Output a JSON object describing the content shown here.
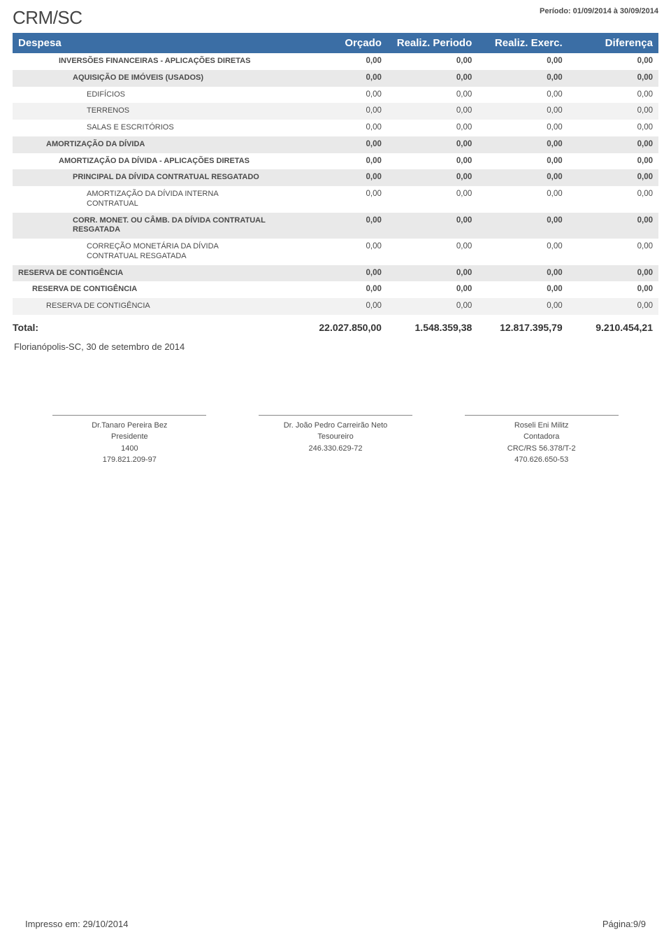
{
  "header": {
    "org": "CRM/SC",
    "period_label": "Período: 01/09/2014 à 30/09/2014"
  },
  "table": {
    "columns": [
      "Despesa",
      "Orçado",
      "Realiz. Periodo",
      "Realiz. Exerc.",
      "Diferença"
    ],
    "rows": [
      {
        "label": "INVERSÕES FINANCEIRAS - APLICAÇÕES DIRETAS",
        "vals": [
          "0,00",
          "0,00",
          "0,00",
          "0,00"
        ],
        "indent": 3,
        "bold": true,
        "shade": 0
      },
      {
        "label": "AQUISIÇÃO DE IMÓVEIS (USADOS)",
        "vals": [
          "0,00",
          "0,00",
          "0,00",
          "0,00"
        ],
        "indent": 4,
        "bold": true,
        "shade": 2
      },
      {
        "label": "EDIFÍCIOS",
        "vals": [
          "0,00",
          "0,00",
          "0,00",
          "0,00"
        ],
        "indent": 5,
        "bold": false,
        "shade": 0
      },
      {
        "label": "TERRENOS",
        "vals": [
          "0,00",
          "0,00",
          "0,00",
          "0,00"
        ],
        "indent": 5,
        "bold": false,
        "shade": 1
      },
      {
        "label": "SALAS E ESCRITÓRIOS",
        "vals": [
          "0,00",
          "0,00",
          "0,00",
          "0,00"
        ],
        "indent": 5,
        "bold": false,
        "shade": 0
      },
      {
        "label": "AMORTIZAÇÃO DA DÍVIDA",
        "vals": [
          "0,00",
          "0,00",
          "0,00",
          "0,00"
        ],
        "indent": 2,
        "bold": true,
        "shade": 2
      },
      {
        "label": "AMORTIZAÇÃO DA DÍVIDA - APLICAÇÕES DIRETAS",
        "vals": [
          "0,00",
          "0,00",
          "0,00",
          "0,00"
        ],
        "indent": 3,
        "bold": true,
        "shade": 0
      },
      {
        "label": "PRINCIPAL DA DÍVIDA CONTRATUAL RESGATADO",
        "vals": [
          "0,00",
          "0,00",
          "0,00",
          "0,00"
        ],
        "indent": 4,
        "bold": true,
        "shade": 2
      },
      {
        "label": "AMORTIZAÇÃO DA DÍVIDA INTERNA CONTRATUAL",
        "vals": [
          "0,00",
          "0,00",
          "0,00",
          "0,00"
        ],
        "indent": 5,
        "bold": false,
        "shade": 0
      },
      {
        "label": "CORR. MONET. OU CÂMB. DA DÍVIDA CONTRATUAL RESGATADA",
        "vals": [
          "0,00",
          "0,00",
          "0,00",
          "0,00"
        ],
        "indent": 4,
        "bold": true,
        "shade": 2
      },
      {
        "label": "CORREÇÃO MONETÁRIA DA DÍVIDA CONTRATUAL RESGATADA",
        "vals": [
          "0,00",
          "0,00",
          "0,00",
          "0,00"
        ],
        "indent": 5,
        "bold": false,
        "shade": 0
      },
      {
        "label": "RESERVA DE CONTIGÊNCIA",
        "vals": [
          "0,00",
          "0,00",
          "0,00",
          "0,00"
        ],
        "indent": 0,
        "bold": true,
        "shade": 2
      },
      {
        "label": "RESERVA DE CONTIGÊNCIA",
        "vals": [
          "0,00",
          "0,00",
          "0,00",
          "0,00"
        ],
        "indent": 1,
        "bold": true,
        "shade": 0
      },
      {
        "label": "RESERVA DE CONTIGÊNCIA",
        "vals": [
          "0,00",
          "0,00",
          "0,00",
          "0,00"
        ],
        "indent": 2,
        "bold": false,
        "shade": 1
      }
    ],
    "total": {
      "label": "Total:",
      "vals": [
        "22.027.850,00",
        "1.548.359,38",
        "12.817.395,79",
        "9.210.454,21"
      ]
    }
  },
  "place_date": "Florianópolis-SC, 30 de setembro de 2014",
  "signatures": [
    {
      "name": "Dr.Tanaro Pereira Bez",
      "role": "Presidente",
      "line3": "1400",
      "line4": "179.821.209-97"
    },
    {
      "name": "Dr. João Pedro Carreirão Neto",
      "role": "Tesoureiro",
      "line3": "246.330.629-72",
      "line4": ""
    },
    {
      "name": "Roseli Eni Militz",
      "role": "Contadora",
      "line3": "CRC/RS 56.378/T-2",
      "line4": "470.626.650-53"
    }
  ],
  "footer": {
    "printed": "Impresso em: 29/10/2014",
    "page": "Página:9/9"
  }
}
